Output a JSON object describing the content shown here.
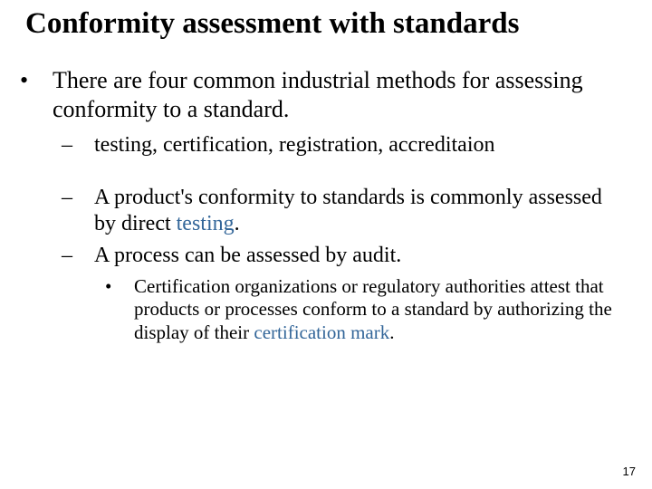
{
  "title": "Conformity assessment with standards",
  "level1_a": "There are four common industrial methods for assessing conformity to a standard.",
  "level2_a": "testing, certification, registration, accreditaion",
  "level2_b_pre": "A product's conformity to standards is commonly assessed by direct ",
  "level2_b_link": "testing",
  "level2_b_post": ".",
  "level2_c": "A process can be assessed by audit.",
  "level3_a_pre": "Certification organizations or regulatory authorities attest that products or processes conform to a standard by authorizing the display of their ",
  "level3_a_link": "certification mark",
  "level3_a_post": ".",
  "page_number": "17",
  "colors": {
    "text": "#000000",
    "link": "#336699",
    "background": "#ffffff"
  },
  "typography": {
    "title_fontsize": 33,
    "level1_fontsize": 26,
    "level2_fontsize": 24,
    "level3_fontsize": 21,
    "font_family": "Times New Roman"
  }
}
